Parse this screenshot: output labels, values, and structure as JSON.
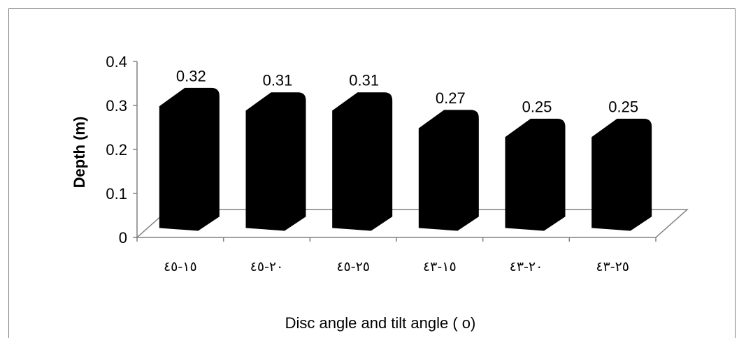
{
  "chart_data": {
    "type": "bar",
    "style": "3d-column",
    "categories": [
      "١٥-٤٥",
      "٢٠-٤٥",
      "٢٥-٤٥",
      "١٥-٤٣",
      "٢٠-٤٣",
      "٢٥-٤٣"
    ],
    "values": [
      0.32,
      0.31,
      0.31,
      0.27,
      0.25,
      0.25
    ],
    "data_labels": [
      "0.32",
      "0.31",
      "0.31",
      "0.27",
      "0.25",
      "0.25"
    ],
    "title": "",
    "xlabel": "Disc angle and tilt angle ( o)",
    "ylabel": "Depth  (m)",
    "ylim": [
      0,
      0.4
    ],
    "yticks": [
      "0",
      "0.1",
      "0.2",
      "0.3",
      "0.4"
    ],
    "grid": false,
    "legend": "none",
    "bar_color": "#000000",
    "axis_color": "#808080"
  }
}
